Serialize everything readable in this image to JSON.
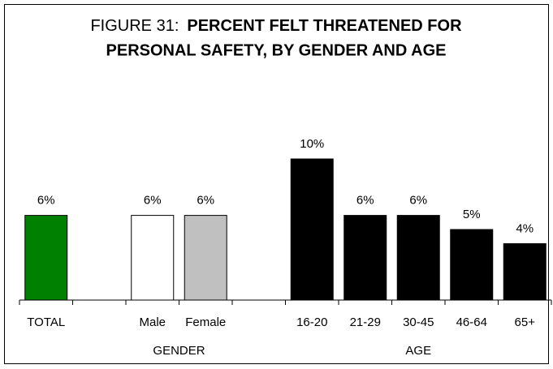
{
  "chart_data": {
    "type": "bar",
    "title": [
      "FIGURE 31:",
      "PERCENT FELT THREATENED FOR",
      "PERSONAL SAFETY, BY GENDER AND AGE"
    ],
    "categories": [
      "TOTAL",
      null,
      "Male",
      "Female",
      null,
      "16-20",
      "21-29",
      "30-45",
      "46-64",
      "65+"
    ],
    "values": [
      6,
      null,
      6,
      6,
      null,
      10,
      6,
      6,
      5,
      4
    ],
    "value_labels": [
      "6%",
      null,
      "6%",
      "6%",
      null,
      "10%",
      "6%",
      "6%",
      "5%",
      "4%"
    ],
    "colors": [
      "#008000",
      null,
      "#ffffff",
      "#c0c0c0",
      null,
      "#000000",
      "#000000",
      "#000000",
      "#000000",
      "#000000"
    ],
    "group_labels": [
      "GENDER",
      "AGE"
    ],
    "ylim": [
      0,
      10
    ]
  }
}
